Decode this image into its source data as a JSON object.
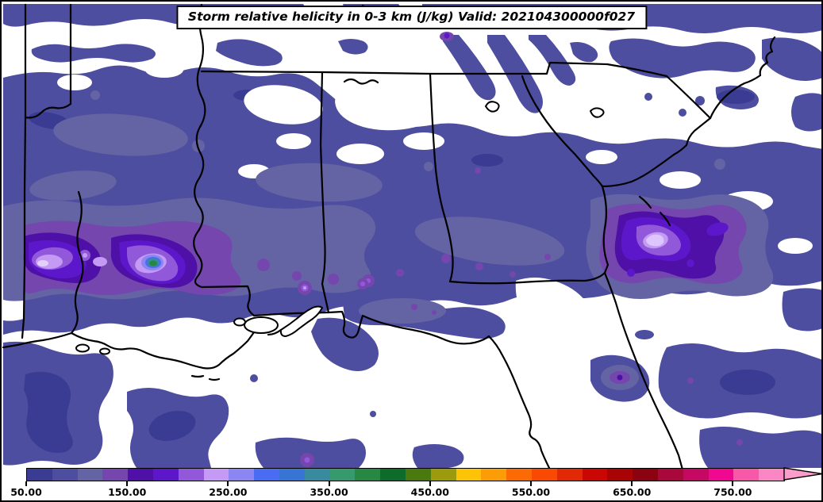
{
  "title": {
    "text": "Storm relative helicity in 0-3 km (J/kg) Valid: 202104300000f027"
  },
  "chart_data": {
    "type": "heatmap",
    "title": "Storm relative helicity in 0-3 km (J/kg) Valid: 202104300000f027",
    "variable": "Storm relative helicity in 0-3 km",
    "units": "J/kg",
    "valid_label": "202104300000f027",
    "region": "Southeastern United States (Arkansas/Louisiana east through the Carolinas and Florida)",
    "map_layers": [
      "state borders",
      "coastlines",
      "lakes"
    ],
    "background_meaning": "white where helicity < 50 J/kg",
    "colorbar": {
      "orientation": "horizontal",
      "min": 50,
      "max": 800,
      "bin_size": 25,
      "extend": "max-arrow",
      "tick_values": [
        50,
        150,
        250,
        350,
        450,
        550,
        650,
        750
      ],
      "tick_labels": [
        "50.00",
        "150.00",
        "250.00",
        "350.00",
        "450.00",
        "550.00",
        "650.00",
        "750.00"
      ],
      "bin_colors": [
        "#3a3b93",
        "#4d4e9f",
        "#6463a3",
        "#7546ae",
        "#4e10a6",
        "#5d17cb",
        "#9159da",
        "#c49af5",
        "#8c86f2",
        "#4a6cf3",
        "#3874d4",
        "#388a9e",
        "#379a6e",
        "#278843",
        "#0d6c29",
        "#49790f",
        "#9c9b0e",
        "#fdc306",
        "#fb9d06",
        "#fc6a05",
        "#f94a03",
        "#e12906",
        "#ca0705",
        "#a80305",
        "#8b0310",
        "#a9083a",
        "#c50861",
        "#f00890",
        "#f858a8",
        "#fa87c3"
      ],
      "arrow_color": "#fb9dca"
    },
    "field_summary": {
      "dominant_band": "broad 50-100 J/kg slate-blue band stretching west to east across the domain",
      "maxima": [
        {
          "location": "near the Louisiana/Mississippi border",
          "approx_peak_jkg": 390
        },
        {
          "location": "western map edge near TX/LA",
          "approx_peak_jkg": 240
        },
        {
          "location": "Atlantic waters off the Georgia coast",
          "approx_peak_jkg": 240
        }
      ]
    }
  }
}
